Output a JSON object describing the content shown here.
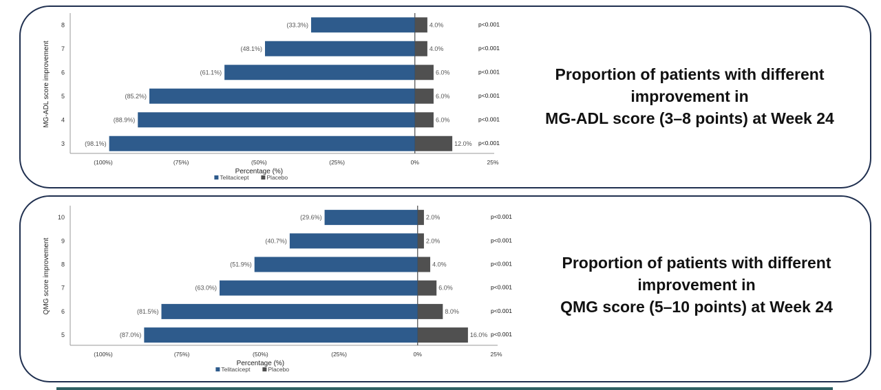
{
  "colors": {
    "telitacicept": "#2e5b8c",
    "placebo": "#505050",
    "border": "#1f2f4f"
  },
  "chart_data": [
    {
      "type": "bar",
      "orientation": "horizontal-diverging",
      "ylabel": "MG-ADL score improvement",
      "xlabel": "Percentage (%)",
      "categories": [
        "8",
        "7",
        "6",
        "5",
        "4",
        "3"
      ],
      "series": [
        {
          "name": "Telitacicept",
          "values": [
            33.3,
            48.1,
            61.1,
            85.2,
            88.9,
            98.1
          ],
          "labels": [
            "(33.3%)",
            "(48.1%)",
            "(61.1%)",
            "(85.2%)",
            "(88.9%)",
            "(98.1%)"
          ]
        },
        {
          "name": "Placebo",
          "values": [
            4.0,
            4.0,
            6.0,
            6.0,
            6.0,
            12.0
          ],
          "labels": [
            "4.0%",
            "4.0%",
            "6.0%",
            "6.0%",
            "6.0%",
            "12.0%"
          ]
        }
      ],
      "p_values": [
        "p<0.001",
        "p<0.001",
        "p<0.001",
        "p<0.001",
        "p<0.001",
        "p<0.001"
      ],
      "xticks": [
        -100,
        -75,
        -50,
        -25,
        0,
        25
      ],
      "xtick_labels": [
        "(100%)",
        "(75%)",
        "(50%)",
        "(25%)",
        "0%",
        "25%"
      ],
      "xlim": [
        -100,
        25
      ],
      "legend": "bottom-center",
      "grid": false
    },
    {
      "type": "bar",
      "orientation": "horizontal-diverging",
      "ylabel": "QMG score improvement",
      "xlabel": "Percentage (%)",
      "categories": [
        "10",
        "9",
        "8",
        "7",
        "6",
        "5"
      ],
      "series": [
        {
          "name": "Telitacicept",
          "values": [
            29.6,
            40.7,
            51.9,
            63.0,
            81.5,
            87.0
          ],
          "labels": [
            "(29.6%)",
            "(40.7%)",
            "(51.9%)",
            "(63.0%)",
            "(81.5%)",
            "(87.0%)"
          ]
        },
        {
          "name": "Placebo",
          "values": [
            2.0,
            2.0,
            4.0,
            6.0,
            8.0,
            16.0
          ],
          "labels": [
            "2.0%",
            "2.0%",
            "4.0%",
            "6.0%",
            "8.0%",
            "16.0%"
          ]
        }
      ],
      "p_values": [
        "p<0.001",
        "p<0.001",
        "p<0.001",
        "p<0.001",
        "p<0.001",
        "p<0.001"
      ],
      "xticks": [
        -100,
        -75,
        -50,
        -25,
        0,
        25
      ],
      "xtick_labels": [
        "(100%)",
        "(75%)",
        "(50%)",
        "(25%)",
        "0%",
        "25%"
      ],
      "xlim": [
        -100,
        25
      ],
      "legend": "bottom-center",
      "grid": false
    }
  ],
  "panels": [
    {
      "title_lines": [
        "Proportion of patients with different",
        "improvement in",
        "MG-ADL score (3–8 points) at Week 24"
      ]
    },
    {
      "title_lines": [
        "Proportion of patients with different",
        "improvement in",
        "QMG score (5–10 points) at Week 24"
      ]
    }
  ]
}
